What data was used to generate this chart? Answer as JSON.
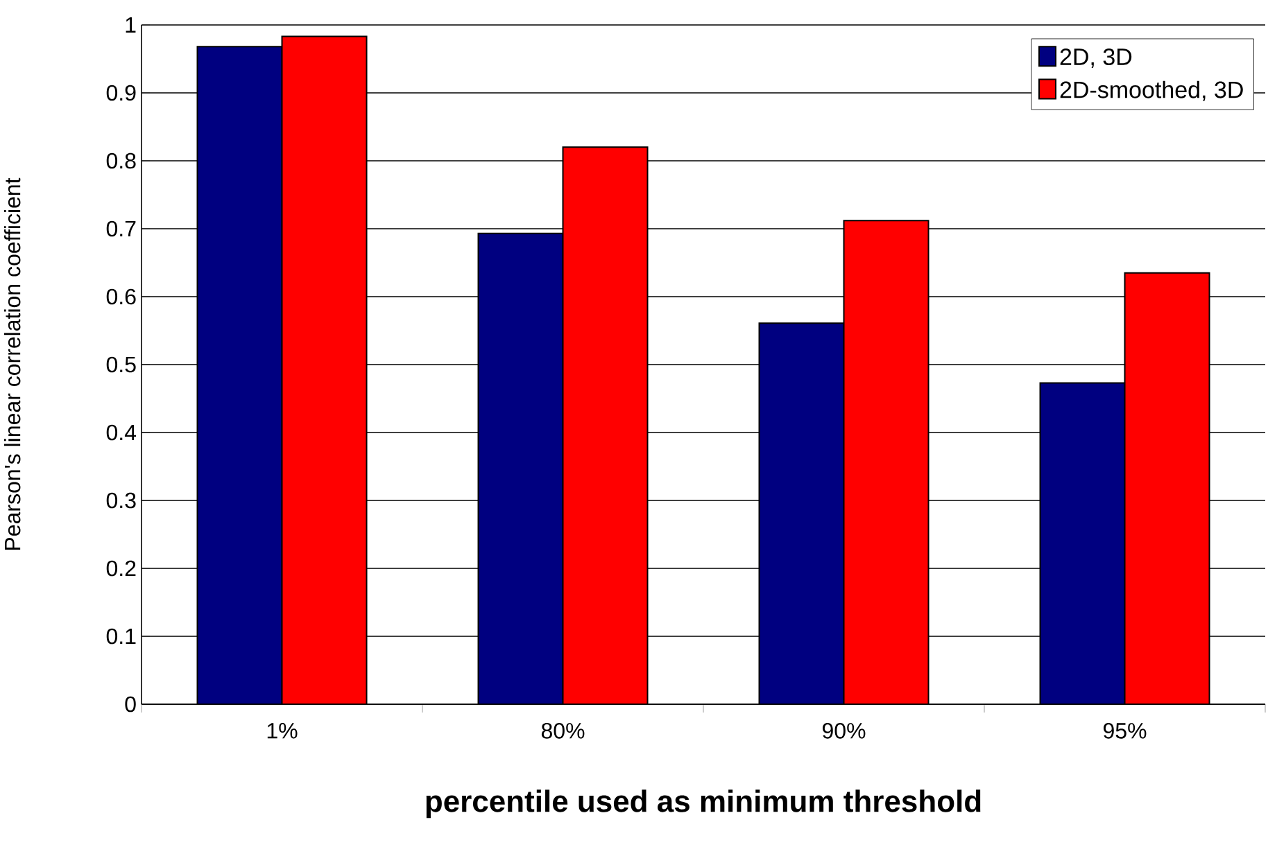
{
  "chart_data": {
    "type": "bar",
    "xlabel": "percentile used as minimum threshold",
    "ylabel": "Pearson's linear correlation coefficient",
    "categories": [
      "1%",
      "80%",
      "90%",
      "95%"
    ],
    "series": [
      {
        "name": "2D, 3D",
        "color": "#000080",
        "values": [
          0.968,
          0.693,
          0.561,
          0.473
        ]
      },
      {
        "name": "2D-smoothed, 3D",
        "color": "#ff0000",
        "values": [
          0.983,
          0.82,
          0.712,
          0.635
        ]
      }
    ],
    "ylim": [
      0,
      1
    ],
    "yticks": [
      0,
      0.1,
      0.2,
      0.3,
      0.4,
      0.5,
      0.6,
      0.7,
      0.8,
      0.9,
      1
    ],
    "grid": "y",
    "legend": "top right"
  }
}
